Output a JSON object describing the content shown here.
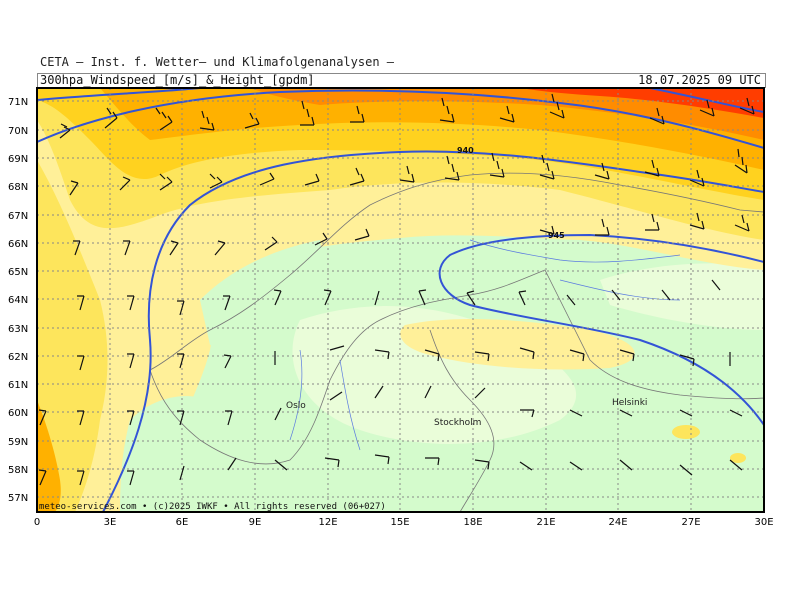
{
  "header": {
    "agency": "CETA – Inst. f. Wetter– und Klimafolgenanalysen –",
    "product": "300hpa_Windspeed_[m/s]_&_Height_[gpdm]",
    "valid_time": "18.07.2025 09 UTC"
  },
  "map": {
    "lon_ticks": [
      "0",
      "3E",
      "6E",
      "9E",
      "12E",
      "15E",
      "18E",
      "21E",
      "24E",
      "27E",
      "30E"
    ],
    "lat_ticks": [
      "71N",
      "70N",
      "69N",
      "68N",
      "67N",
      "66N",
      "65N",
      "64N",
      "63N",
      "62N",
      "61N",
      "60N",
      "59N",
      "58N",
      "57N"
    ],
    "cities": [
      "Oslo",
      "Stockholm",
      "Helsinki"
    ],
    "contour_labels": [
      "940",
      "945"
    ],
    "credit": "meteo-services.com • (c)2025 IWKF • All rights reserved (06+027)"
  },
  "colors": {
    "weak": "#d4fbcc",
    "very_weak": "#eafdd9",
    "moderate": "#fff099",
    "strong": "#fde55c",
    "stronger": "#ffd21f",
    "orange": "#ffb100",
    "dark_orange": "#ff8c00",
    "red": "#ff3d00",
    "contour": "#3354d6",
    "grid": "#888888"
  }
}
